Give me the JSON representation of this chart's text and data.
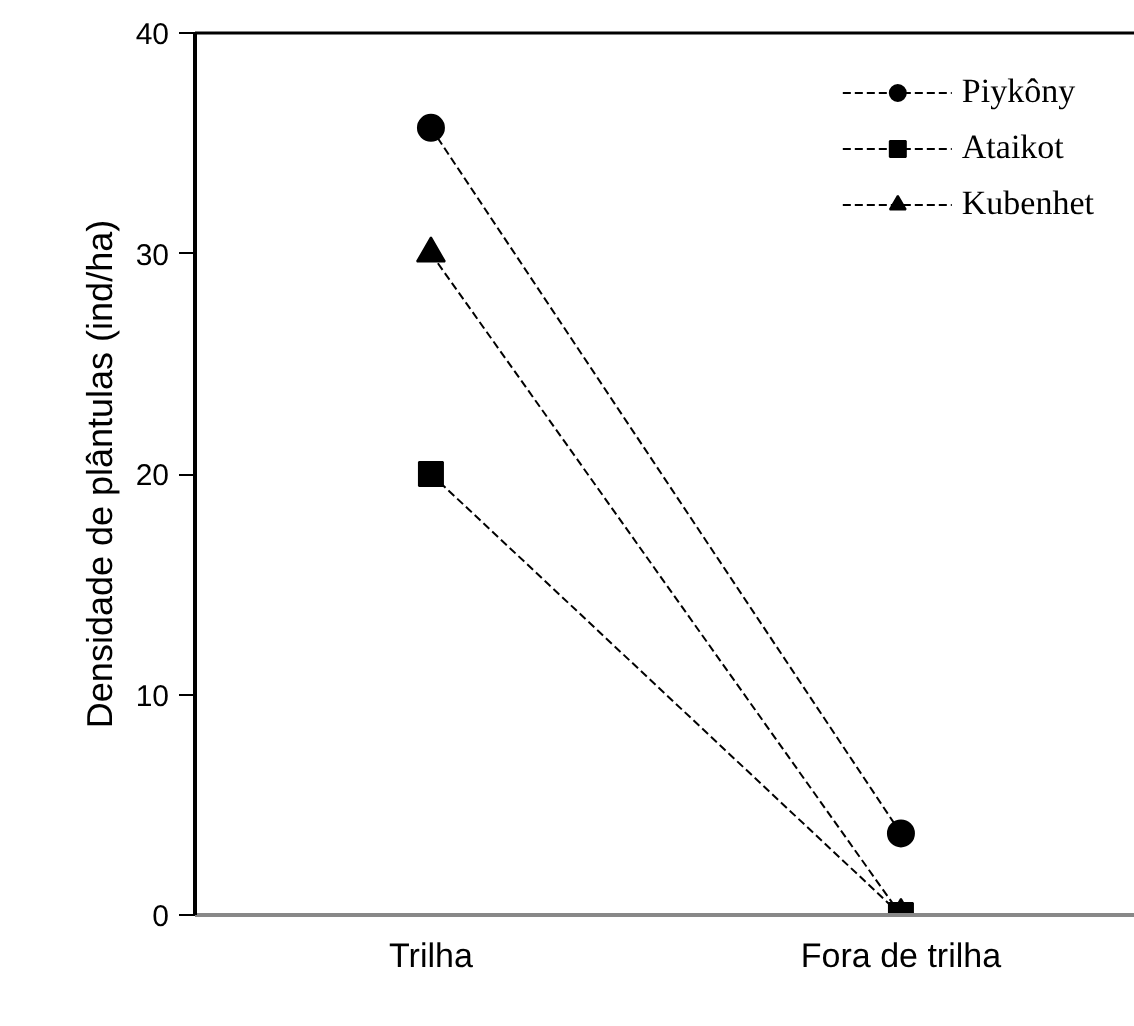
{
  "chart_data": {
    "type": "line",
    "ylabel": "Densidade de plântulas (ind/ha)",
    "categories": [
      "Trilha",
      "Fora de trilha"
    ],
    "series": [
      {
        "name": "Piykôny",
        "color": "#000000",
        "values": [
          35.7,
          3.7
        ],
        "marker": "circle"
      },
      {
        "name": "Ataikot",
        "color": "#000000",
        "values": [
          20,
          0
        ],
        "marker": "square"
      },
      {
        "name": "Kubenhet",
        "color": "#000000",
        "values": [
          30,
          0
        ],
        "marker": "triangle"
      }
    ],
    "ylim": [
      0,
      40
    ],
    "yticks": [
      0,
      10,
      20,
      30,
      40
    ],
    "grid": false,
    "legend": "top right",
    "line_style": "dashed"
  }
}
